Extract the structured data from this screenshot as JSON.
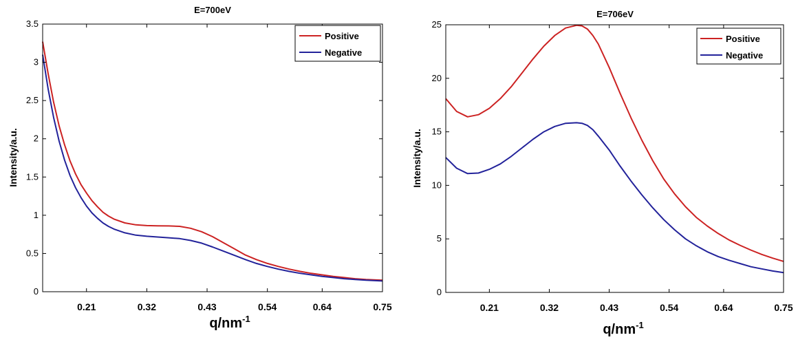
{
  "chart_data": [
    {
      "type": "line",
      "title": "E=700eV",
      "xlabel": "q/nm",
      "xlabel_sup": "-1",
      "ylabel": "Intensity/a.u.",
      "xlim": [
        0.13,
        0.75
      ],
      "ylim": [
        0,
        3.5
      ],
      "xticks": [
        0.21,
        0.32,
        0.43,
        0.54,
        0.64,
        0.75
      ],
      "xtick_labels": [
        "0.21",
        "0.32",
        "0.43",
        "0.54",
        "0.64",
        "0.75"
      ],
      "yticks": [
        0,
        0.5,
        1,
        1.5,
        2,
        2.5,
        3,
        3.5
      ],
      "ytick_labels": [
        "0",
        "0.5",
        "1",
        "1.5",
        "2",
        "2.5",
        "3",
        "3.5"
      ],
      "grid": false,
      "legend_position": "top-right",
      "series": [
        {
          "name": "Positive",
          "color": "#cc2222",
          "x": [
            0.13,
            0.14,
            0.15,
            0.16,
            0.17,
            0.18,
            0.19,
            0.2,
            0.21,
            0.22,
            0.23,
            0.24,
            0.25,
            0.26,
            0.28,
            0.3,
            0.32,
            0.34,
            0.36,
            0.38,
            0.4,
            0.42,
            0.44,
            0.46,
            0.48,
            0.5,
            0.52,
            0.54,
            0.56,
            0.58,
            0.6,
            0.62,
            0.64,
            0.66,
            0.68,
            0.7,
            0.72,
            0.75
          ],
          "y": [
            3.27,
            2.85,
            2.48,
            2.17,
            1.92,
            1.71,
            1.54,
            1.4,
            1.29,
            1.19,
            1.11,
            1.04,
            0.99,
            0.95,
            0.9,
            0.875,
            0.865,
            0.862,
            0.86,
            0.855,
            0.83,
            0.785,
            0.72,
            0.64,
            0.56,
            0.48,
            0.42,
            0.37,
            0.33,
            0.295,
            0.265,
            0.24,
            0.22,
            0.2,
            0.185,
            0.17,
            0.16,
            0.15
          ]
        },
        {
          "name": "Negative",
          "color": "#22229a",
          "x": [
            0.13,
            0.14,
            0.15,
            0.16,
            0.17,
            0.18,
            0.19,
            0.2,
            0.21,
            0.22,
            0.23,
            0.24,
            0.25,
            0.26,
            0.28,
            0.3,
            0.32,
            0.34,
            0.36,
            0.38,
            0.4,
            0.42,
            0.44,
            0.46,
            0.48,
            0.5,
            0.52,
            0.54,
            0.56,
            0.58,
            0.6,
            0.62,
            0.64,
            0.66,
            0.68,
            0.7,
            0.72,
            0.75
          ],
          "y": [
            3.1,
            2.65,
            2.28,
            1.97,
            1.72,
            1.52,
            1.36,
            1.23,
            1.12,
            1.03,
            0.96,
            0.9,
            0.855,
            0.82,
            0.77,
            0.74,
            0.725,
            0.715,
            0.705,
            0.695,
            0.67,
            0.635,
            0.585,
            0.53,
            0.475,
            0.42,
            0.37,
            0.33,
            0.295,
            0.265,
            0.24,
            0.22,
            0.2,
            0.185,
            0.17,
            0.16,
            0.15,
            0.14
          ]
        }
      ]
    },
    {
      "type": "line",
      "title": "E=706eV",
      "xlabel": "q/nm",
      "xlabel_sup": "-1",
      "ylabel": "Intensity/a.u.",
      "xlim": [
        0.13,
        0.75
      ],
      "ylim": [
        0,
        25
      ],
      "xticks": [
        0.21,
        0.32,
        0.43,
        0.54,
        0.64,
        0.75
      ],
      "xtick_labels": [
        "0.21",
        "0.32",
        "0.43",
        "0.54",
        "0.64",
        "0.75"
      ],
      "yticks": [
        0,
        5,
        10,
        15,
        20,
        25
      ],
      "ytick_labels": [
        "0",
        "5",
        "10",
        "15",
        "20",
        "25"
      ],
      "grid": false,
      "legend_position": "top-right",
      "series": [
        {
          "name": "Positive",
          "color": "#cc2222",
          "x": [
            0.13,
            0.15,
            0.17,
            0.19,
            0.21,
            0.23,
            0.25,
            0.27,
            0.29,
            0.31,
            0.33,
            0.35,
            0.37,
            0.38,
            0.39,
            0.4,
            0.41,
            0.43,
            0.45,
            0.47,
            0.49,
            0.51,
            0.53,
            0.55,
            0.57,
            0.59,
            0.61,
            0.63,
            0.65,
            0.67,
            0.69,
            0.71,
            0.73,
            0.75
          ],
          "y": [
            18.1,
            16.9,
            16.4,
            16.6,
            17.2,
            18.1,
            19.2,
            20.5,
            21.8,
            23.0,
            24.0,
            24.7,
            24.95,
            24.9,
            24.6,
            24.0,
            23.2,
            21.0,
            18.6,
            16.3,
            14.2,
            12.3,
            10.6,
            9.2,
            8.0,
            7.0,
            6.2,
            5.5,
            4.9,
            4.4,
            3.95,
            3.55,
            3.2,
            2.9
          ]
        },
        {
          "name": "Negative",
          "color": "#22229a",
          "x": [
            0.13,
            0.15,
            0.17,
            0.19,
            0.21,
            0.23,
            0.25,
            0.27,
            0.29,
            0.31,
            0.33,
            0.35,
            0.37,
            0.38,
            0.39,
            0.4,
            0.41,
            0.43,
            0.45,
            0.47,
            0.49,
            0.51,
            0.53,
            0.55,
            0.57,
            0.59,
            0.61,
            0.63,
            0.65,
            0.67,
            0.69,
            0.71,
            0.73,
            0.75
          ],
          "y": [
            12.6,
            11.6,
            11.1,
            11.15,
            11.5,
            12.0,
            12.7,
            13.5,
            14.3,
            15.0,
            15.5,
            15.8,
            15.85,
            15.8,
            15.6,
            15.2,
            14.6,
            13.3,
            11.8,
            10.4,
            9.1,
            7.9,
            6.8,
            5.85,
            5.0,
            4.35,
            3.8,
            3.35,
            3.0,
            2.7,
            2.4,
            2.2,
            2.0,
            1.85
          ]
        }
      ]
    }
  ]
}
